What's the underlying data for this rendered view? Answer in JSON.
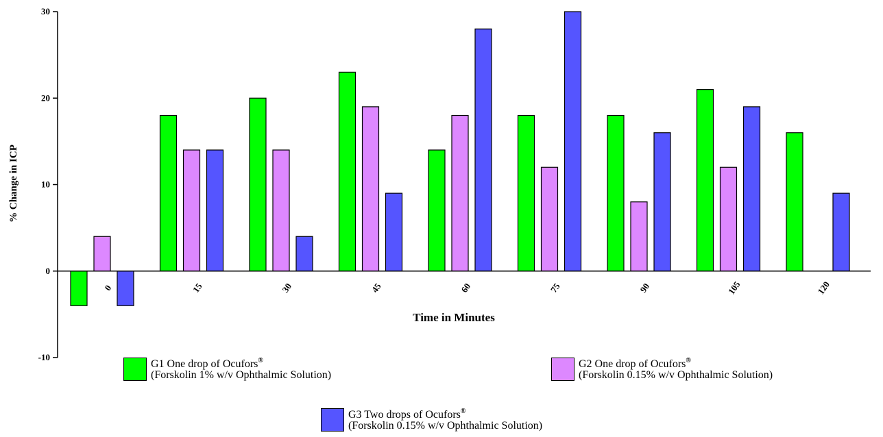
{
  "chart_data": {
    "type": "bar",
    "title": "",
    "xlabel": "Time in Minutes",
    "ylabel": "% Change in ICP",
    "ylim": [
      -10,
      30
    ],
    "yticks": [
      "-10",
      "0",
      "10",
      "20",
      "30"
    ],
    "categories": [
      "0",
      "15",
      "30",
      "45",
      "60",
      "75",
      "90",
      "105",
      "120"
    ],
    "grid": false,
    "legend_position": "bottom",
    "series": [
      {
        "name": "G1 One drop of Ocufors",
        "detail": "(Forskolin 1% w/v Ophthalmic Solution)",
        "mark": "®",
        "color": "#00ff00",
        "values": [
          -4,
          18,
          20,
          23,
          14,
          18,
          18,
          21,
          16
        ]
      },
      {
        "name": "G2 One drop of Ocufors",
        "detail": "(Forskolin 0.15% w/v Ophthalmic Solution)",
        "mark": "®",
        "color": "#dd88ff",
        "values": [
          4,
          14,
          14,
          19,
          18,
          12,
          8,
          12,
          0
        ]
      },
      {
        "name": "G3 Two drops of Ocufors",
        "detail": "(Forskolin 0.15% w/v Ophthalmic Solution)",
        "mark": "®",
        "color": "#5555ff",
        "values": [
          -4,
          14,
          4,
          9,
          28,
          30,
          16,
          19,
          9
        ]
      }
    ]
  }
}
